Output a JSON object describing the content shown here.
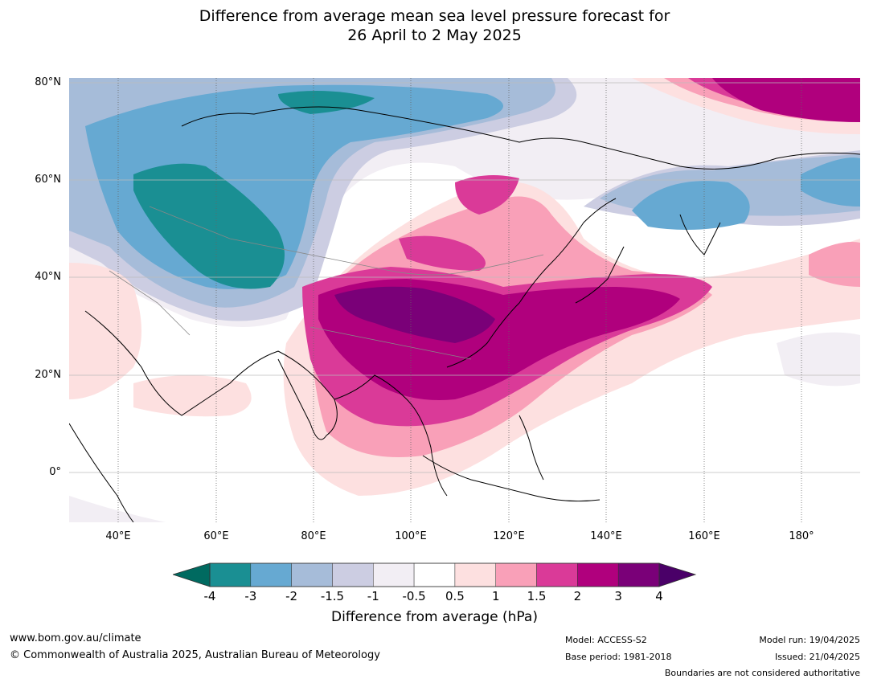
{
  "title_line1": "Difference from average mean sea level pressure forecast for",
  "title_line2": "26 April to 2 May 2025",
  "lat_labels": [
    "80°N",
    "60°N",
    "40°N",
    "20°N",
    "0°"
  ],
  "lon_labels": [
    "40°E",
    "60°E",
    "80°E",
    "100°E",
    "120°E",
    "140°E",
    "160°E",
    "180°"
  ],
  "colorbar": {
    "ticks": [
      "-4",
      "-3",
      "-2",
      "-1.5",
      "-1",
      "-0.5",
      "0.5",
      "1",
      "1.5",
      "2",
      "3",
      "4"
    ],
    "colors": [
      "#1a8f93",
      "#66a9d2",
      "#a6bcd9",
      "#cccde2",
      "#f2eef4",
      "#ffffff",
      "#fde0e0",
      "#f9a0b8",
      "#da3a98",
      "#b0007d",
      "#7a0078"
    ],
    "under_color": "#006a60",
    "over_color": "#4a0068",
    "label": "Difference from average (hPa)"
  },
  "footer": {
    "website": "www.bom.gov.au/climate",
    "copyright": "© Commonwealth of Australia 2025, Australian Bureau of Meteorology",
    "model": "Model: ACCESS-S2",
    "base_period": "Base period: 1981-2018",
    "model_run": "Model run: 19/04/2025",
    "issued": "Issued: 21/04/2025",
    "disclaimer": "Boundaries are not considered authoritative"
  }
}
